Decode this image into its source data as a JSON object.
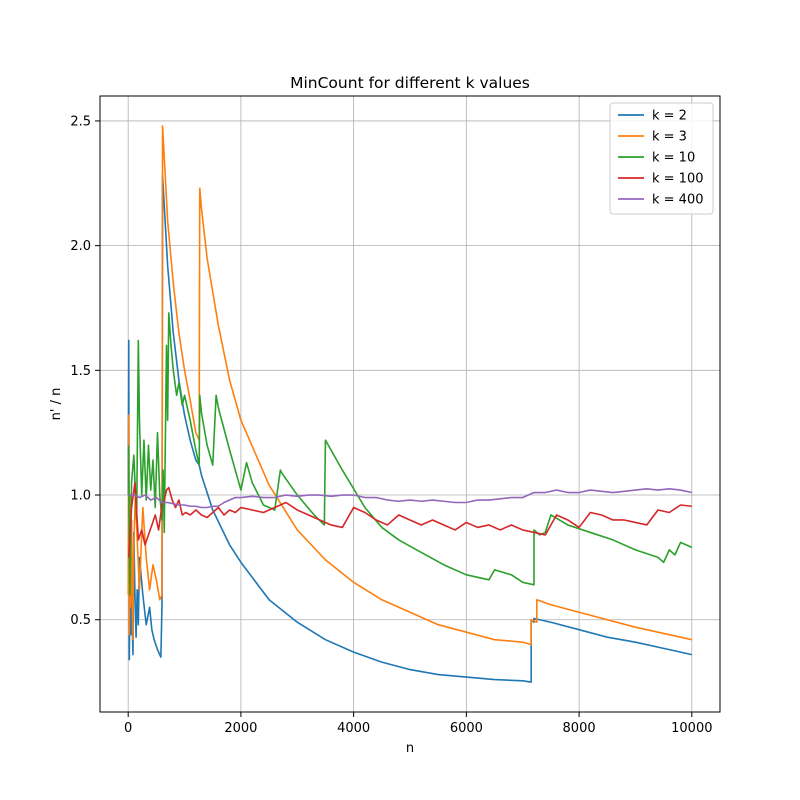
{
  "chart_data": {
    "type": "line",
    "title": "MinCount for different k values",
    "xlabel": "n",
    "ylabel": "n' / n",
    "xlim": [
      -500,
      10500
    ],
    "ylim": [
      0.13,
      2.6
    ],
    "xticks": [
      0,
      2000,
      4000,
      6000,
      8000,
      10000
    ],
    "yticks": [
      0.5,
      1.0,
      1.5,
      2.0,
      2.5
    ],
    "ytick_labels": [
      "0.5",
      "1.0",
      "1.5",
      "2.0",
      "2.5"
    ],
    "grid": true,
    "legend_position": "top-right",
    "series": [
      {
        "name": "k = 2",
        "color": "#1f77b4",
        "x": [
          1,
          10,
          20,
          35,
          50,
          60,
          70,
          85,
          100,
          120,
          140,
          160,
          180,
          200,
          260,
          320,
          380,
          420,
          460,
          520,
          580,
          600,
          610,
          700,
          800,
          900,
          1000,
          1100,
          1200,
          1260,
          1300,
          1500,
          1800,
          2000,
          2500,
          3000,
          3500,
          4000,
          4500,
          5000,
          5500,
          6000,
          6500,
          7000,
          7150,
          7150,
          7200,
          7200,
          7300,
          7500,
          8000,
          8500,
          9000,
          9500,
          10000
        ],
        "y": [
          1.0,
          1.62,
          0.34,
          0.8,
          0.44,
          0.86,
          0.5,
          0.36,
          0.85,
          0.6,
          0.43,
          0.62,
          0.48,
          0.75,
          0.6,
          0.48,
          0.55,
          0.46,
          0.42,
          0.38,
          0.35,
          0.56,
          2.28,
          1.92,
          1.65,
          1.46,
          1.32,
          1.22,
          1.14,
          1.12,
          1.08,
          0.94,
          0.8,
          0.73,
          0.58,
          0.49,
          0.42,
          0.37,
          0.33,
          0.3,
          0.28,
          0.27,
          0.26,
          0.255,
          0.25,
          0.5,
          0.49,
          0.505,
          0.5,
          0.49,
          0.46,
          0.43,
          0.41,
          0.385,
          0.36
        ]
      },
      {
        "name": "k = 3",
        "color": "#ff7f0e",
        "x": [
          1,
          10,
          20,
          30,
          40,
          60,
          80,
          100,
          130,
          160,
          200,
          260,
          320,
          380,
          440,
          500,
          560,
          600,
          610,
          700,
          800,
          900,
          1000,
          1100,
          1200,
          1260,
          1270,
          1300,
          1400,
          1600,
          1800,
          2000,
          2500,
          3000,
          3500,
          4000,
          4500,
          5000,
          5500,
          6000,
          6500,
          7000,
          7150,
          7150,
          7250,
          7250,
          7500,
          8000,
          8500,
          9000,
          9500,
          10000
        ],
        "y": [
          0.6,
          1.32,
          0.44,
          1.0,
          0.55,
          0.9,
          0.42,
          0.8,
          1.02,
          0.82,
          0.62,
          0.95,
          0.75,
          0.62,
          0.72,
          0.66,
          0.58,
          0.6,
          2.48,
          2.1,
          1.85,
          1.65,
          1.5,
          1.38,
          1.25,
          1.22,
          2.23,
          2.15,
          1.95,
          1.68,
          1.46,
          1.3,
          1.04,
          0.86,
          0.74,
          0.65,
          0.58,
          0.53,
          0.48,
          0.45,
          0.42,
          0.41,
          0.4,
          0.5,
          0.49,
          0.58,
          0.56,
          0.53,
          0.5,
          0.47,
          0.445,
          0.42
        ]
      },
      {
        "name": "k = 10",
        "color": "#2ca02c",
        "x": [
          5,
          30,
          60,
          100,
          150,
          180,
          200,
          240,
          280,
          320,
          360,
          400,
          440,
          480,
          520,
          560,
          600,
          620,
          640,
          680,
          700,
          720,
          760,
          800,
          860,
          900,
          960,
          1000,
          1100,
          1200,
          1260,
          1270,
          1300,
          1400,
          1500,
          1560,
          1600,
          1800,
          2000,
          2100,
          2200,
          2400,
          2600,
          2700,
          2720,
          3000,
          3300,
          3480,
          3500,
          3800,
          4200,
          4500,
          4800,
          5200,
          5600,
          6000,
          6400,
          6500,
          6800,
          7000,
          7200,
          7200,
          7300,
          7400,
          7500,
          7800,
          8200,
          8600,
          9000,
          9400,
          9500,
          9600,
          9700,
          9800,
          10000
        ],
        "y": [
          1.2,
          0.6,
          1.05,
          1.16,
          0.9,
          1.62,
          1.3,
          1.0,
          1.22,
          0.98,
          1.2,
          1.02,
          1.14,
          0.95,
          1.25,
          1.0,
          0.9,
          1.1,
          0.85,
          1.6,
          1.3,
          1.73,
          1.6,
          1.5,
          1.4,
          1.45,
          1.36,
          1.4,
          1.3,
          1.18,
          1.12,
          1.4,
          1.33,
          1.2,
          1.12,
          1.4,
          1.35,
          1.18,
          1.02,
          1.13,
          1.05,
          0.96,
          0.94,
          1.1,
          1.09,
          1.0,
          0.92,
          0.88,
          1.22,
          1.1,
          0.95,
          0.87,
          0.82,
          0.77,
          0.72,
          0.68,
          0.66,
          0.7,
          0.68,
          0.65,
          0.64,
          0.86,
          0.84,
          0.85,
          0.92,
          0.88,
          0.85,
          0.82,
          0.78,
          0.75,
          0.73,
          0.78,
          0.76,
          0.81,
          0.79
        ]
      },
      {
        "name": "k = 100",
        "color": "#d62728",
        "x": [
          10,
          60,
          120,
          180,
          240,
          300,
          360,
          420,
          480,
          540,
          600,
          640,
          680,
          720,
          780,
          840,
          900,
          960,
          1020,
          1100,
          1200,
          1300,
          1400,
          1500,
          1600,
          1700,
          1800,
          1900,
          2000,
          2200,
          2400,
          2600,
          2800,
          3000,
          3200,
          3400,
          3600,
          3800,
          4000,
          4200,
          4400,
          4600,
          4800,
          5000,
          5200,
          5400,
          5600,
          5800,
          6000,
          6200,
          6400,
          6600,
          6800,
          7000,
          7200,
          7400,
          7600,
          7800,
          8000,
          8200,
          8400,
          8600,
          8800,
          9000,
          9200,
          9400,
          9600,
          9800,
          10000
        ],
        "y": [
          0.75,
          0.95,
          1.05,
          0.82,
          0.86,
          0.8,
          0.84,
          0.88,
          0.92,
          0.86,
          0.96,
          0.98,
          1.02,
          1.03,
          0.98,
          0.95,
          0.98,
          0.92,
          0.93,
          0.92,
          0.94,
          0.92,
          0.91,
          0.93,
          0.95,
          0.92,
          0.94,
          0.93,
          0.95,
          0.94,
          0.93,
          0.95,
          0.97,
          0.94,
          0.92,
          0.9,
          0.88,
          0.87,
          0.95,
          0.93,
          0.9,
          0.88,
          0.92,
          0.9,
          0.88,
          0.9,
          0.88,
          0.86,
          0.89,
          0.87,
          0.88,
          0.86,
          0.88,
          0.86,
          0.85,
          0.84,
          0.92,
          0.9,
          0.87,
          0.93,
          0.92,
          0.9,
          0.9,
          0.89,
          0.88,
          0.94,
          0.93,
          0.96,
          0.955
        ]
      },
      {
        "name": "k = 400",
        "color": "#9467bd",
        "x": [
          10,
          100,
          200,
          300,
          400,
          500,
          600,
          700,
          800,
          900,
          1000,
          1100,
          1200,
          1300,
          1400,
          1500,
          1600,
          1700,
          1800,
          1900,
          2000,
          2200,
          2400,
          2600,
          2800,
          3000,
          3200,
          3400,
          3600,
          3800,
          4000,
          4200,
          4400,
          4600,
          4800,
          5000,
          5200,
          5400,
          5600,
          5800,
          6000,
          6200,
          6400,
          6600,
          6800,
          7000,
          7200,
          7400,
          7600,
          7800,
          8000,
          8200,
          8400,
          8600,
          8800,
          9000,
          9200,
          9400,
          9600,
          9800,
          10000
        ],
        "y": [
          1.0,
          1.0,
          0.99,
          1.0,
          0.98,
          0.99,
          0.97,
          0.97,
          0.965,
          0.96,
          0.96,
          0.955,
          0.955,
          0.95,
          0.95,
          0.955,
          0.955,
          0.97,
          0.98,
          0.99,
          0.99,
          0.995,
          0.99,
          0.99,
          1.0,
          0.995,
          1.0,
          1.0,
          0.995,
          1.0,
          1.0,
          0.99,
          0.99,
          0.98,
          0.975,
          0.98,
          0.975,
          0.98,
          0.975,
          0.97,
          0.97,
          0.98,
          0.98,
          0.985,
          0.99,
          0.99,
          1.01,
          1.01,
          1.02,
          1.01,
          1.01,
          1.02,
          1.015,
          1.01,
          1.015,
          1.02,
          1.025,
          1.02,
          1.025,
          1.02,
          1.01
        ]
      }
    ]
  }
}
